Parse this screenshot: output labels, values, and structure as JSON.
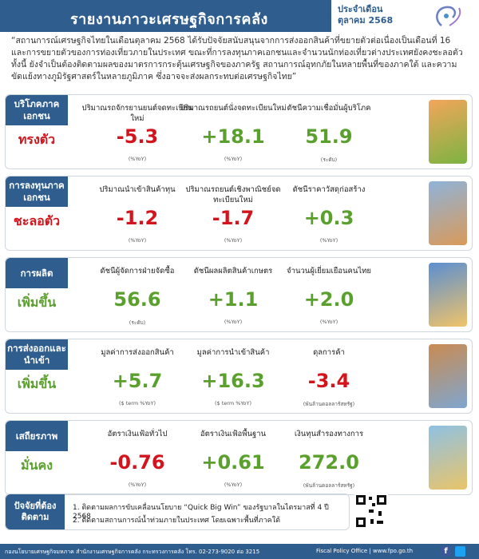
{
  "header": {
    "title": "รายงานภาวะเศรษฐกิจการคลัง",
    "issue_label": "ประจำเดือน",
    "issue_month": "ตุลาคม 2568"
  },
  "intro": "“สถานการณ์เศรษฐกิจไทยในเดือนตุลาคม 2568 ได้รับปัจจัยสนับสนุนจากการส่งออกสินค้าที่ขยายตัวต่อเนื่องเป็นเดือนที่ 16 และการขยายตัวของการท่องเที่ยวภายในประเทศ ขณะที่การลงทุนภาคเอกชนและจำนวนนักท่องเที่ยวต่างประเทศยังคงชะลอตัว ทั้งนี้ ยังจำเป็นต้องติดตามผลของมาตรการกระตุ้นเศรษฐกิจของภาครัฐ สถานการณ์อุทกภัยในหลายพื้นที่ของภาคใต้ และความขัดแย้งทางภูมิรัฐศาสตร์ในหลายภูมิภาค ซึ่งอาจจะส่งผลกระทบต่อเศรษฐกิจไทย”",
  "sections": [
    {
      "label": "บริโภคภาคเอกชน",
      "status": "ทรงตัว",
      "status_color": "#d4141c",
      "metrics": [
        {
          "label": "ปริมาณรถจักรยานยนต์จดทะเบียนใหม่",
          "value": "-5.3",
          "unit": "(%YoY)",
          "color": "#d4141c"
        },
        {
          "label": "ปริมาณรถยนต์นั่งจดทะเบียนใหม่",
          "value": "+18.1",
          "unit": "(%YoY)",
          "color": "#5aa02c"
        },
        {
          "label": "ดัชนีความเชื่อมั่นผู้บริโภค",
          "value": "51.9",
          "unit": "(ระดับ)",
          "color": "#5aa02c"
        }
      ]
    },
    {
      "label": "การลงทุนภาคเอกชน",
      "status": "ชะลอตัว",
      "status_color": "#d4141c",
      "metrics": [
        {
          "label": "ปริมาณนำเข้าสินค้าทุน",
          "value": "-1.2",
          "unit": "(%YoY)",
          "color": "#d4141c"
        },
        {
          "label": "ปริมาณรถยนต์เชิงพาณิชย์จดทะเบียนใหม่",
          "value": "-1.7",
          "unit": "(%YoY)",
          "color": "#d4141c"
        },
        {
          "label": "ดัชนีราคาวัสดุก่อสร้าง",
          "value": "+0.3",
          "unit": "(%YoY)",
          "color": "#5aa02c"
        }
      ]
    },
    {
      "label": "การผลิต",
      "status": "เพิ่มขึ้น",
      "status_color": "#5aa02c",
      "metrics": [
        {
          "label": "ดัชนีผู้จัดการฝ่ายจัดซื้อ",
          "value": "56.6",
          "unit": "(ระดับ)",
          "color": "#5aa02c"
        },
        {
          "label": "ดัชนีผลผลิตสินค้าเกษตร",
          "value": "+1.1",
          "unit": "(%YoY)",
          "color": "#5aa02c"
        },
        {
          "label": "จำนวนผู้เยี่ยมเยือนคนไทย",
          "value": "+2.0",
          "unit": "(%YoY)",
          "color": "#5aa02c"
        }
      ]
    },
    {
      "label": "การส่งออกและนำเข้า",
      "status": "เพิ่มขึ้น",
      "status_color": "#5aa02c",
      "metrics": [
        {
          "label": "มูลค่าการส่งออกสินค้า",
          "value": "+5.7",
          "unit": "($ term %YoY)",
          "color": "#5aa02c"
        },
        {
          "label": "มูลค่าการนำเข้าสินค้า",
          "value": "+16.3",
          "unit": "($ term %YoY)",
          "color": "#5aa02c"
        },
        {
          "label": "ดุลการค้า",
          "value": "-3.4",
          "unit": "(พันล้านดอลลาร์สหรัฐ)",
          "color": "#d4141c"
        }
      ]
    },
    {
      "label": "เสถียรภาพ",
      "status": "มั่นคง",
      "status_color": "#5aa02c",
      "metrics": [
        {
          "label": "อัตราเงินเฟ้อทั่วไป",
          "value": "-0.76",
          "unit": "(%YoY)",
          "color": "#d4141c"
        },
        {
          "label": "อัตราเงินเฟ้อพื้นฐาน",
          "value": "+0.61",
          "unit": "(%YoY)",
          "color": "#5aa02c"
        },
        {
          "label": "เงินทุนสำรองทางการ",
          "value": "272.0",
          "unit": "(พันล้านดอลลาร์สหรัฐ)",
          "color": "#5aa02c"
        }
      ]
    }
  ],
  "factors": {
    "label": "ปัจจัยที่ต้องติดตาม",
    "items": [
      "1. ติดตามผลการขับเคลื่อนนโยบาย “Quick Big Win” ของรัฐบาลในไตรมาสที่ 4 ปี 2568",
      "2. ติดตามสถานการณ์น้ำท่วมภายในประเทศ โดยเฉพาะพื้นที่ภาคใต้"
    ]
  },
  "footer": {
    "contact": "กองนโยบายเศรษฐกิจมหภาค สำนักงานเศรษฐกิจการคลัง กระทรวงการคลัง โทร. 02-273-9020 ต่อ 3215",
    "office": "Fiscal Policy Office | www.fpo.go.th"
  },
  "colors": {
    "accent": "#2f5d8e",
    "positive": "#5aa02c",
    "negative": "#d4141c"
  },
  "icons": [
    "fpo-logo-icon",
    "qr-code-icon",
    "facebook-icon",
    "twitter-icon"
  ]
}
